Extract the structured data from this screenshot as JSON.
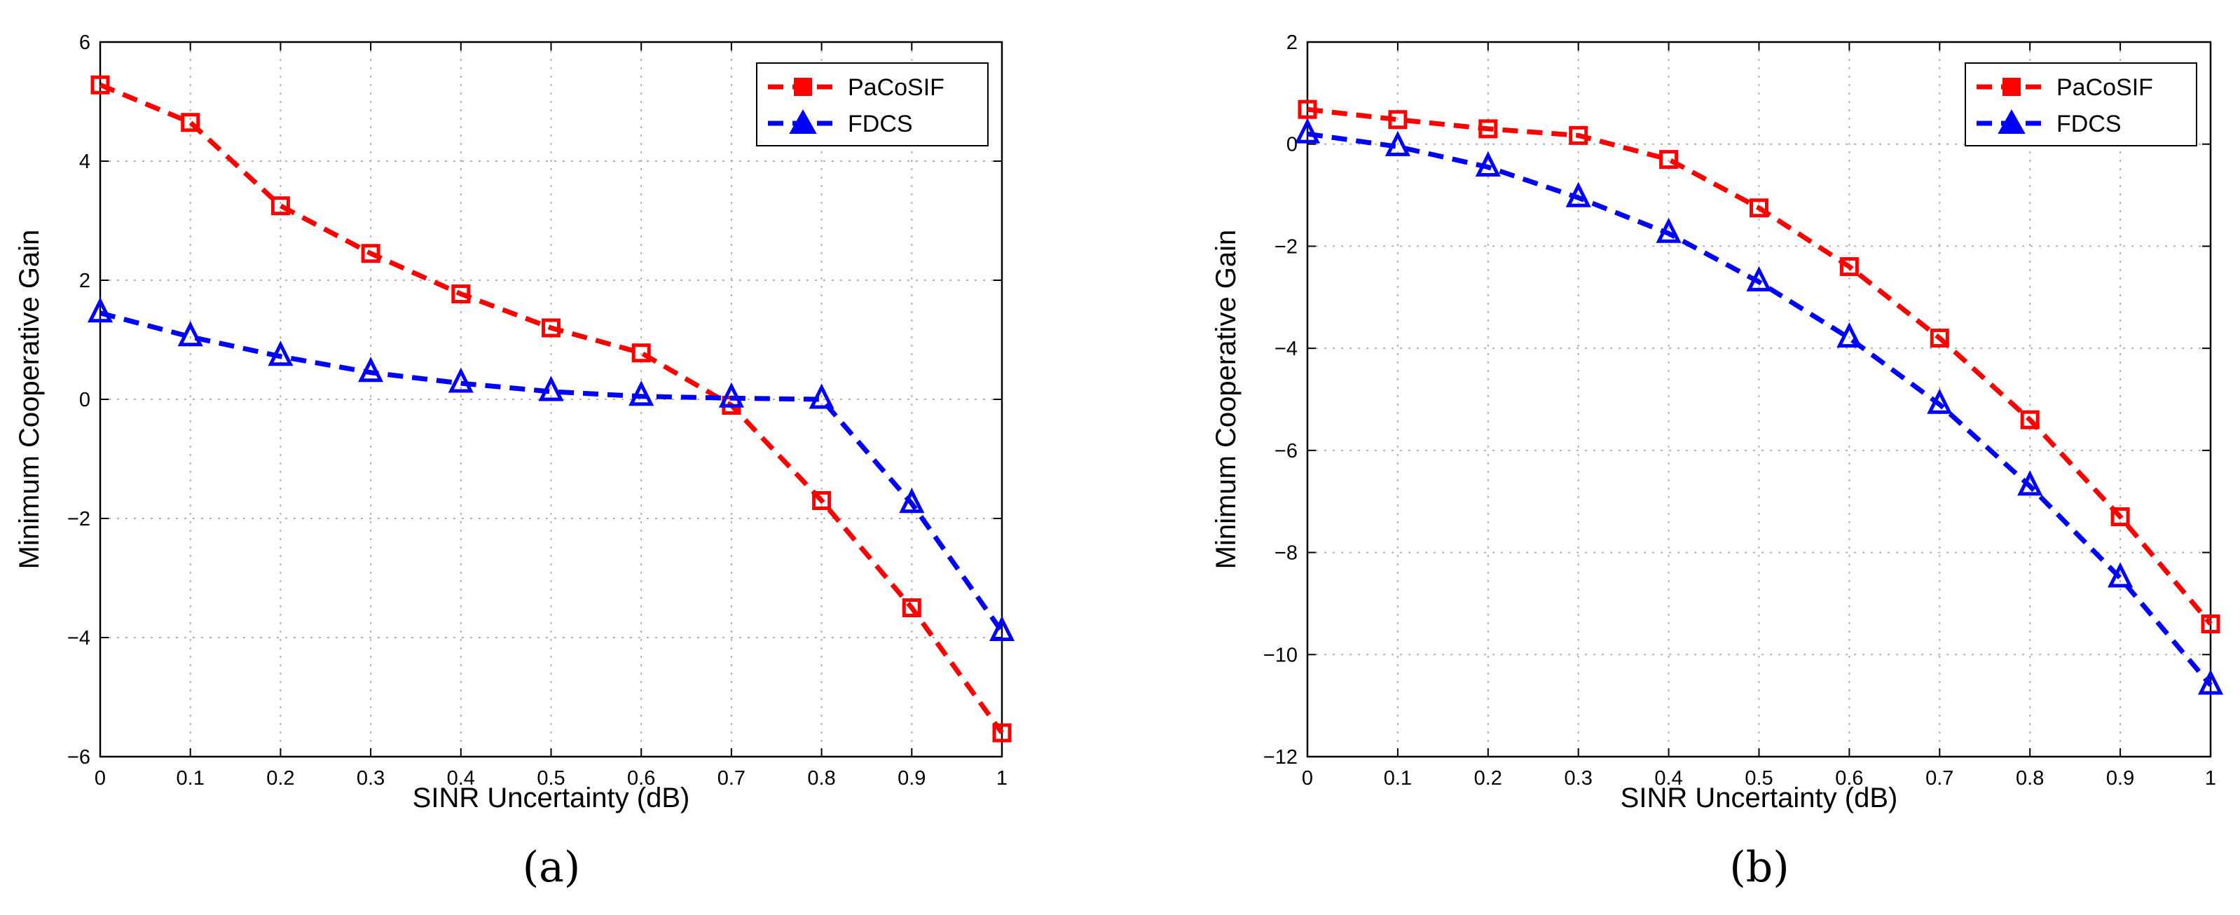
{
  "chart_data": [
    {
      "type": "line",
      "panel_label": "(a)",
      "xlabel": "SINR Uncertainty (dB)",
      "ylabel": "Minimum Cooperative Gain",
      "xlim": [
        0,
        1
      ],
      "ylim": [
        -6,
        6
      ],
      "x_ticks": [
        "0",
        "0.1",
        "0.2",
        "0.3",
        "0.4",
        "0.5",
        "0.6",
        "0.7",
        "0.8",
        "0.9",
        "1"
      ],
      "y_ticks": [
        "6",
        "4",
        "2",
        "0",
        "−2",
        "−4",
        "−6"
      ],
      "grid": true,
      "legend_position": "top-right",
      "x": [
        0,
        0.1,
        0.2,
        0.3,
        0.4,
        0.5,
        0.6,
        0.7,
        0.8,
        0.9,
        1.0
      ],
      "series": [
        {
          "name": "PaCoSIF",
          "color": "#ff0000",
          "marker": "square",
          "values": [
            5.28,
            4.65,
            3.25,
            2.45,
            1.77,
            1.2,
            0.78,
            -0.1,
            -1.7,
            -3.5,
            -5.6
          ]
        },
        {
          "name": "FDCS",
          "color": "#0000ff",
          "marker": "triangle",
          "values": [
            1.45,
            1.05,
            0.72,
            0.45,
            0.27,
            0.13,
            0.05,
            0.02,
            0.0,
            -1.75,
            -3.9
          ]
        }
      ]
    },
    {
      "type": "line",
      "panel_label": "(b)",
      "xlabel": "SINR Uncertainty (dB)",
      "ylabel": "Minimum Cooperative Gain",
      "xlim": [
        0,
        1
      ],
      "ylim": [
        -12,
        2
      ],
      "x_ticks": [
        "0",
        "0.1",
        "0.2",
        "0.3",
        "0.4",
        "0.5",
        "0.6",
        "0.7",
        "0.8",
        "0.9",
        "1"
      ],
      "y_ticks": [
        "2",
        "0",
        "−2",
        "−4",
        "−6",
        "−8",
        "−10",
        "−12"
      ],
      "grid": true,
      "legend_position": "top-right",
      "x": [
        0,
        0.1,
        0.2,
        0.3,
        0.4,
        0.5,
        0.6,
        0.7,
        0.8,
        0.9,
        1.0
      ],
      "series": [
        {
          "name": "PaCoSIF",
          "color": "#ff0000",
          "marker": "square",
          "values": [
            0.68,
            0.48,
            0.3,
            0.17,
            -0.3,
            -1.25,
            -2.4,
            -3.8,
            -5.4,
            -7.3,
            -9.4
          ]
        },
        {
          "name": "FDCS",
          "color": "#0000ff",
          "marker": "triangle",
          "values": [
            0.2,
            -0.05,
            -0.45,
            -1.05,
            -1.75,
            -2.7,
            -3.8,
            -5.1,
            -6.7,
            -8.5,
            -10.6
          ]
        }
      ]
    }
  ]
}
